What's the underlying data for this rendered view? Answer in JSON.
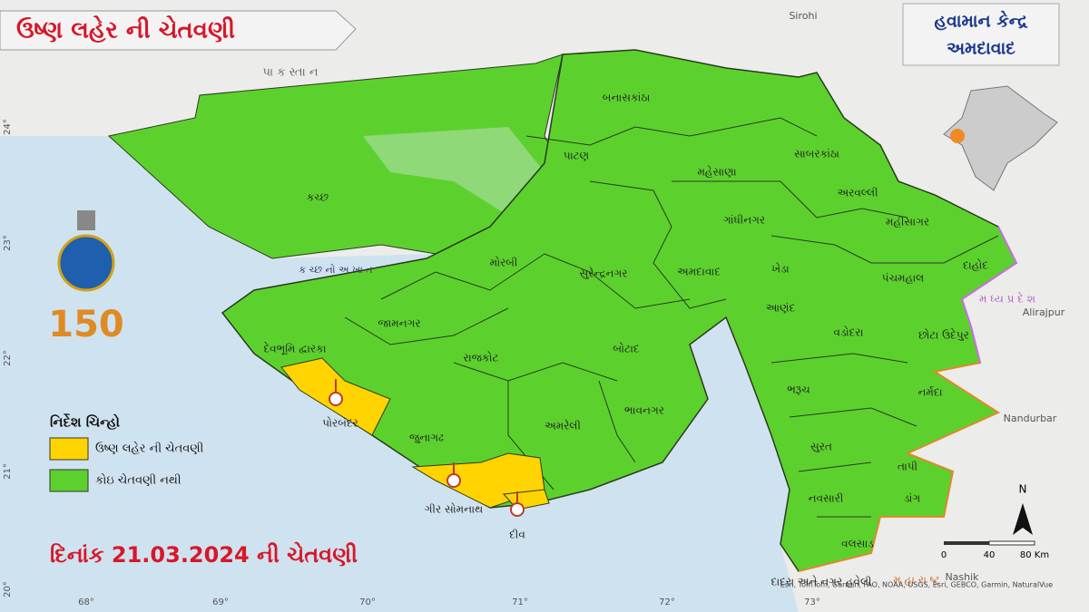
{
  "header": {
    "title": "ઉષ્ણ લહેર ની ચેતવણી"
  },
  "office": {
    "line1": "હવામાન કેન્દ્ર",
    "line2": "અમદાવાદ"
  },
  "map": {
    "districts": [
      {
        "label": "કચ્છ",
        "color": "#5cd12e"
      },
      {
        "label": "બનાસકાંઠા",
        "color": "#5cd12e"
      },
      {
        "label": "પાટણ",
        "color": "#5cd12e"
      },
      {
        "label": "મહેસાણા",
        "color": "#5cd12e"
      },
      {
        "label": "સાબરકાંઠા",
        "color": "#5cd12e"
      },
      {
        "label": "અરવલ્લી",
        "color": "#5cd12e"
      },
      {
        "label": "ગાંધીનગર",
        "color": "#5cd12e"
      },
      {
        "label": "મહીસાગર",
        "color": "#5cd12e"
      },
      {
        "label": "અમદાવાદ",
        "color": "#5cd12e"
      },
      {
        "label": "ખેડા",
        "color": "#5cd12e"
      },
      {
        "label": "પંચમહાલ",
        "color": "#5cd12e"
      },
      {
        "label": "દાહોદ",
        "color": "#5cd12e"
      },
      {
        "label": "મોરબી",
        "color": "#5cd12e"
      },
      {
        "label": "સુરેન્દ્રનગર",
        "color": "#5cd12e"
      },
      {
        "label": "જામનગર",
        "color": "#5cd12e"
      },
      {
        "label": "દેવભૂમિ દ્વારકા",
        "color": "#5cd12e"
      },
      {
        "label": "રાજકોટ",
        "color": "#5cd12e"
      },
      {
        "label": "બોટાદ",
        "color": "#5cd12e"
      },
      {
        "label": "આણંદ",
        "color": "#5cd12e"
      },
      {
        "label": "વડોદરા",
        "color": "#5cd12e"
      },
      {
        "label": "છોટા ઉદેપુર",
        "color": "#5cd12e"
      },
      {
        "label": "ભરૂચ",
        "color": "#5cd12e"
      },
      {
        "label": "નર્મદા",
        "color": "#5cd12e"
      },
      {
        "label": "પોરબંદર",
        "color": "#ffd400"
      },
      {
        "label": "જુનાગઢ",
        "color": "#5cd12e"
      },
      {
        "label": "અમરેલી",
        "color": "#5cd12e"
      },
      {
        "label": "ભાવનગર",
        "color": "#5cd12e"
      },
      {
        "label": "સુરત",
        "color": "#5cd12e"
      },
      {
        "label": "તાપી",
        "color": "#5cd12e"
      },
      {
        "label": "ડાંગ",
        "color": "#5cd12e"
      },
      {
        "label": "નવસારી",
        "color": "#5cd12e"
      },
      {
        "label": "વલસાડ",
        "color": "#5cd12e"
      },
      {
        "label": "ગીર સોમનાથ",
        "color": "#ffd400"
      },
      {
        "label": "દીવ",
        "color": "#ffd400"
      },
      {
        "label": "દાદરા અને નગર હવેલી",
        "color": "#5cd12e"
      }
    ],
    "places": [
      "Sirohi",
      "Alirajpur",
      "Nandurbar",
      "Nashik",
      "પા ક સ્તા ન",
      "ક ચ્છ નો અ ખા ત",
      "મ ધ્ય પ્ર દે શ",
      "મ હા રા ષ્ટ્ર"
    ],
    "longitudes": [
      "68°",
      "69°",
      "70°",
      "71°",
      "72°",
      "73°"
    ],
    "latitudes": [
      "24°",
      "23°",
      "22°",
      "21°",
      "20°"
    ],
    "attribution": "Esri, TomTom, Garmin, FAO, NOAA, USGS, Esri, GEBCO, Garmin, NaturalVue"
  },
  "legend": {
    "title": "નિર્દેશ ચિન્હો",
    "items": [
      {
        "label": "ઉષ્ણ લહેર ની ચેતવણી",
        "color": "#ffd400"
      },
      {
        "label": "કોઇ ચેતવણી નથી",
        "color": "#5cd12e"
      }
    ]
  },
  "date_line": "દિનાંક 21.03.2024 ની ચેતવણી",
  "scale": {
    "ticks": [
      "0",
      "40",
      "80 Km"
    ]
  },
  "north": "N"
}
